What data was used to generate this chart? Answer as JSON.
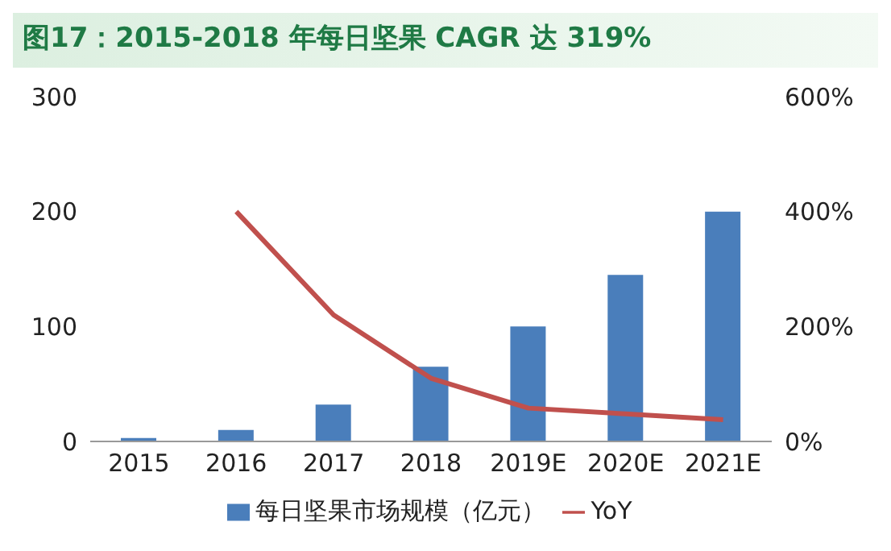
{
  "chart_data": {
    "type": "bar",
    "title": "图17：2015-2018 年每日坚果 CAGR 达 319%",
    "categories": [
      "2015",
      "2016",
      "2017",
      "2018",
      "2019E",
      "2020E",
      "2021E"
    ],
    "series": [
      {
        "name": "每日坚果市场规模（亿元）",
        "color": "#4a7ebb",
        "values": [
          3,
          10,
          32,
          65,
          100,
          145,
          200
        ]
      },
      {
        "name": "YoY",
        "type": "line",
        "axis": "y2",
        "color": "#c0504d",
        "values": [
          null,
          400,
          220,
          110,
          58,
          48,
          38
        ]
      }
    ],
    "ylim": [
      0,
      300
    ],
    "yticks": [
      0,
      100,
      200,
      300
    ],
    "y2lim": [
      0,
      600
    ],
    "y2ticks": [
      {
        "value": 0,
        "label": "0%"
      },
      {
        "value": 200,
        "label": "200%"
      },
      {
        "value": 400,
        "label": "400%"
      },
      {
        "value": 600,
        "label": "600%"
      }
    ],
    "grid": false,
    "legend": "bottom",
    "marker": "none"
  }
}
